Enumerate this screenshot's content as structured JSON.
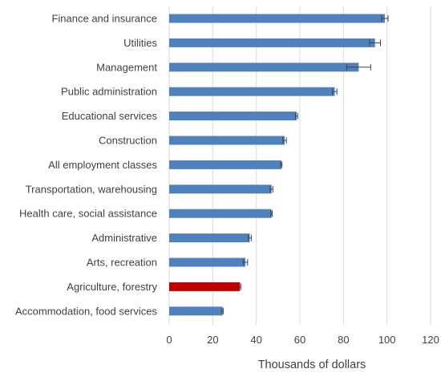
{
  "chart_data": {
    "type": "bar",
    "orientation": "horizontal",
    "categories": [
      "Finance and insurance",
      "Utilities",
      "Management",
      "Public administration",
      "Educational services",
      "Construction",
      "All employment classes",
      "Transportation,  warehousing",
      "Health care, social assistance",
      "Administrative",
      "Arts, recreation",
      "Agriculture, forestry",
      "Accommodation, food services"
    ],
    "values": [
      99,
      94.5,
      87,
      76,
      58.5,
      53,
      51.5,
      47,
      47,
      37,
      35,
      32.5,
      24.5
    ],
    "errors": [
      1.5,
      2.5,
      5.5,
      1.0,
      0.5,
      0.8,
      0.3,
      0.6,
      0.3,
      0.7,
      1.0,
      0.4,
      0.3
    ],
    "highlight_index": 11,
    "xlim": [
      0,
      120
    ],
    "xticks": [
      0,
      20,
      40,
      60,
      80,
      100,
      120
    ],
    "xlabel": "Thousands of dollars",
    "ylabel": "",
    "title": "",
    "grid": "vertical",
    "legend": "none",
    "colors": {
      "bar": "#4f81bd",
      "highlight": "#c00000",
      "grid": "#d9d9d9",
      "text": "#404040"
    }
  }
}
